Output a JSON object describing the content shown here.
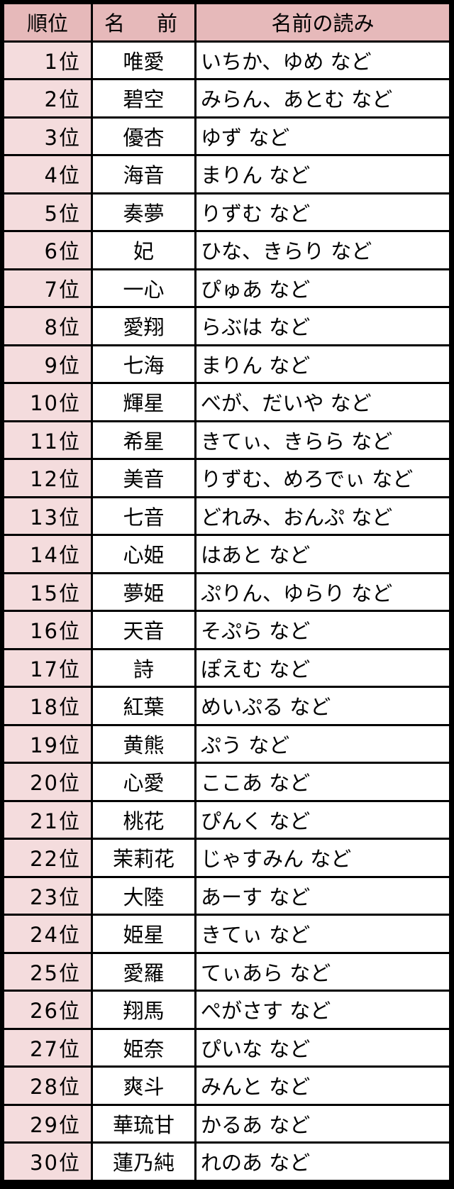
{
  "header": {
    "rank": "順位",
    "name_a": "名",
    "name_b": "前",
    "reading": "名前の読み"
  },
  "colors": {
    "header_bg": "#e6b9ba",
    "rank_bg": "#f4dcdd",
    "border": "#000000"
  },
  "rows": [
    {
      "rank": "1位",
      "name": "唯愛",
      "reading": "いちか、ゆめ など"
    },
    {
      "rank": "2位",
      "name": "碧空",
      "reading": "みらん、あとむ など"
    },
    {
      "rank": "3位",
      "name": "優杏",
      "reading": "ゆず など"
    },
    {
      "rank": "4位",
      "name": "海音",
      "reading": "まりん など"
    },
    {
      "rank": "5位",
      "name": "奏夢",
      "reading": "りずむ など"
    },
    {
      "rank": "6位",
      "name": "妃",
      "reading": "ひな、きらり など"
    },
    {
      "rank": "7位",
      "name": "一心",
      "reading": "ぴゅあ など"
    },
    {
      "rank": "8位",
      "name": "愛翔",
      "reading": "らぶは など"
    },
    {
      "rank": "9位",
      "name": "七海",
      "reading": "まりん など"
    },
    {
      "rank": "10位",
      "name": "輝星",
      "reading": "べが、だいや など"
    },
    {
      "rank": "11位",
      "name": "希星",
      "reading": "きてぃ、きらら など"
    },
    {
      "rank": "12位",
      "name": "美音",
      "reading": "りずむ、めろでぃ など"
    },
    {
      "rank": "13位",
      "name": "七音",
      "reading": "どれみ、おんぷ など"
    },
    {
      "rank": "14位",
      "name": "心姫",
      "reading": "はあと など"
    },
    {
      "rank": "15位",
      "name": "夢姫",
      "reading": "ぷりん、ゆらり など"
    },
    {
      "rank": "16位",
      "name": "天音",
      "reading": "そぷら など"
    },
    {
      "rank": "17位",
      "name": "詩",
      "reading": "ぽえむ など"
    },
    {
      "rank": "18位",
      "name": "紅葉",
      "reading": "めいぷる など"
    },
    {
      "rank": "19位",
      "name": "黄熊",
      "reading": "ぷう など"
    },
    {
      "rank": "20位",
      "name": "心愛",
      "reading": "ここあ など"
    },
    {
      "rank": "21位",
      "name": "桃花",
      "reading": "ぴんく など"
    },
    {
      "rank": "22位",
      "name": "茉莉花",
      "reading": "じゃすみん など"
    },
    {
      "rank": "23位",
      "name": "大陸",
      "reading": "あーす など"
    },
    {
      "rank": "24位",
      "name": "姫星",
      "reading": "きてぃ など"
    },
    {
      "rank": "25位",
      "name": "愛羅",
      "reading": "てぃあら など"
    },
    {
      "rank": "26位",
      "name": "翔馬",
      "reading": "ぺがさす など"
    },
    {
      "rank": "27位",
      "name": "姫奈",
      "reading": "ぴいな など"
    },
    {
      "rank": "28位",
      "name": "爽斗",
      "reading": "みんと など"
    },
    {
      "rank": "29位",
      "name": "華琉甘",
      "reading": "かるあ など"
    },
    {
      "rank": "30位",
      "name": "蓮乃純",
      "reading": "れのあ など"
    }
  ]
}
